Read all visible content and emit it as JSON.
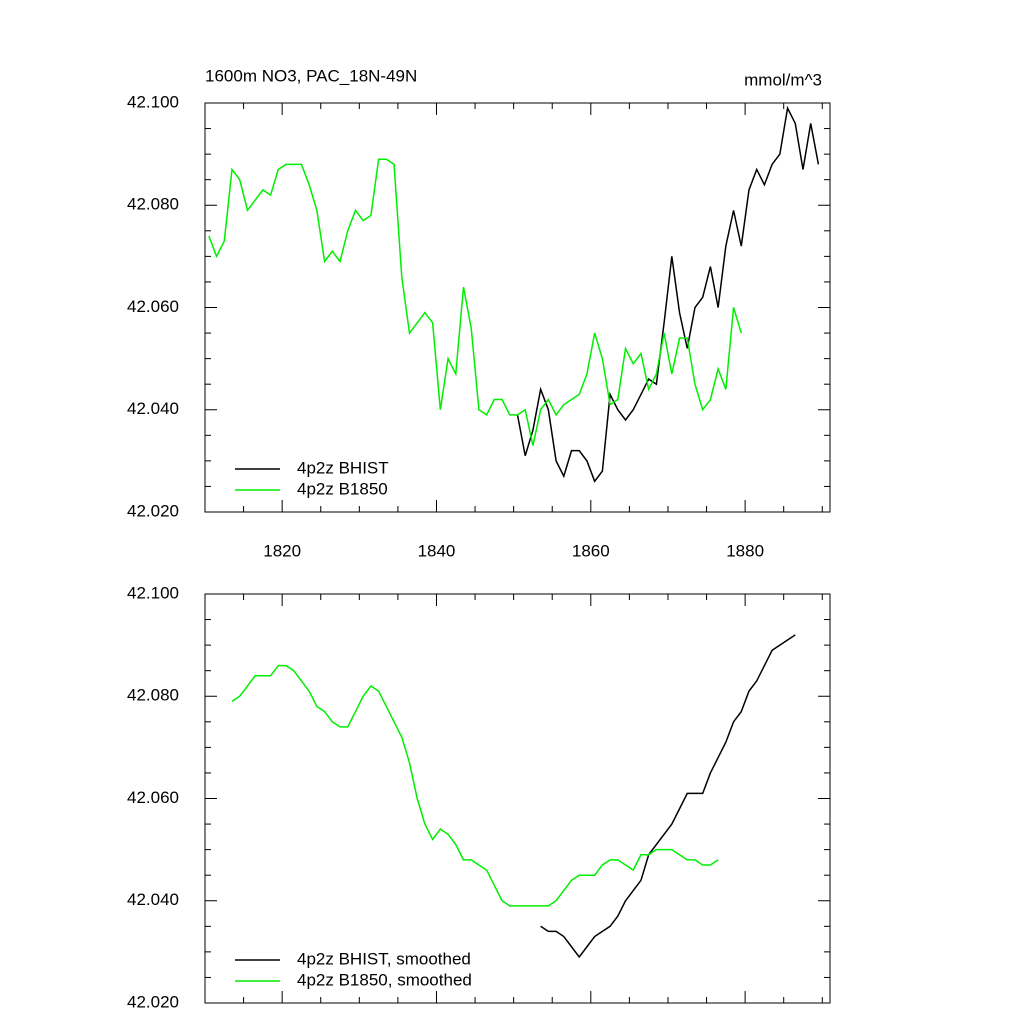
{
  "chart_data": [
    {
      "type": "line",
      "title": "1600m NO3, PAC_18N-49N",
      "units": "mmol/m^3",
      "xlim": [
        1810,
        1891
      ],
      "ylim": [
        42.02,
        42.1
      ],
      "xticks": [
        1820,
        1840,
        1860,
        1880
      ],
      "xminorticks": [
        1815,
        1825,
        1830,
        1835,
        1845,
        1850,
        1855,
        1865,
        1870,
        1875,
        1885,
        1890
      ],
      "yticks": [
        {
          "value": 42.02,
          "label": "42.020"
        },
        {
          "value": 42.04,
          "label": "42.040"
        },
        {
          "value": 42.06,
          "label": "42.060"
        },
        {
          "value": 42.08,
          "label": "42.080"
        },
        {
          "value": 42.1,
          "label": "42.100"
        }
      ],
      "yminorticks": [
        42.025,
        42.03,
        42.035,
        42.045,
        42.05,
        42.055,
        42.065,
        42.07,
        42.075,
        42.085,
        42.09,
        42.095
      ],
      "show_xtick_labels": true,
      "legend": "lower left",
      "series": [
        {
          "name": "4p2z BHIST",
          "color": "#000000",
          "x": [
            1850.5,
            1851.5,
            1852.5,
            1853.5,
            1854.5,
            1855.5,
            1856.5,
            1857.5,
            1858.5,
            1859.5,
            1860.5,
            1861.5,
            1862.5,
            1863.5,
            1864.5,
            1865.5,
            1866.5,
            1867.5,
            1868.5,
            1869.5,
            1870.5,
            1871.5,
            1872.5,
            1873.5,
            1874.5,
            1875.5,
            1876.5,
            1877.5,
            1878.5,
            1879.5,
            1880.5,
            1881.5,
            1882.5,
            1883.5,
            1884.5,
            1885.5,
            1886.5,
            1887.5,
            1888.5,
            1889.5
          ],
          "values": [
            42.039,
            42.031,
            42.036,
            42.044,
            42.04,
            42.03,
            42.027,
            42.032,
            42.032,
            42.03,
            42.026,
            42.028,
            42.043,
            42.04,
            42.038,
            42.04,
            42.043,
            42.046,
            42.045,
            42.057,
            42.07,
            42.059,
            42.052,
            42.06,
            42.062,
            42.068,
            42.06,
            42.072,
            42.079,
            42.072,
            42.083,
            42.087,
            42.084,
            42.088,
            42.09,
            42.099,
            42.096,
            42.087,
            42.096,
            42.088
          ]
        },
        {
          "name": "4p2z B1850",
          "color": "#00ee00",
          "x": [
            1810.5,
            1811.5,
            1812.5,
            1813.5,
            1814.5,
            1815.5,
            1816.5,
            1817.5,
            1818.5,
            1819.5,
            1820.5,
            1821.5,
            1822.5,
            1823.5,
            1824.5,
            1825.5,
            1826.5,
            1827.5,
            1828.5,
            1829.5,
            1830.5,
            1831.5,
            1832.5,
            1833.5,
            1834.5,
            1835.5,
            1836.5,
            1837.5,
            1838.5,
            1839.5,
            1840.5,
            1841.5,
            1842.5,
            1843.5,
            1844.5,
            1845.5,
            1846.5,
            1847.5,
            1848.5,
            1849.5,
            1850.5,
            1851.5,
            1852.5,
            1853.5,
            1854.5,
            1855.5,
            1856.5,
            1857.5,
            1858.5,
            1859.5,
            1860.5,
            1861.5,
            1862.5,
            1863.5,
            1864.5,
            1865.5,
            1866.5,
            1867.5,
            1868.5,
            1869.5,
            1870.5,
            1871.5,
            1872.5,
            1873.5,
            1874.5,
            1875.5,
            1876.5,
            1877.5,
            1878.5,
            1879.5
          ],
          "values": [
            42.074,
            42.07,
            42.073,
            42.087,
            42.085,
            42.079,
            42.081,
            42.083,
            42.082,
            42.087,
            42.088,
            42.088,
            42.088,
            42.084,
            42.079,
            42.069,
            42.071,
            42.069,
            42.075,
            42.079,
            42.077,
            42.078,
            42.089,
            42.089,
            42.088,
            42.066,
            42.055,
            42.057,
            42.059,
            42.057,
            42.04,
            42.05,
            42.047,
            42.064,
            42.056,
            42.04,
            42.039,
            42.042,
            42.042,
            42.039,
            42.039,
            42.04,
            42.033,
            42.04,
            42.042,
            42.039,
            42.041,
            42.042,
            42.043,
            42.047,
            42.055,
            42.05,
            42.041,
            42.042,
            42.052,
            42.049,
            42.051,
            42.044,
            42.047,
            42.055,
            42.047,
            42.054,
            42.054,
            42.045,
            42.04,
            42.042,
            42.048,
            42.044,
            42.06,
            42.055
          ]
        }
      ]
    },
    {
      "type": "line",
      "xlim": [
        1810,
        1891
      ],
      "ylim": [
        42.02,
        42.1
      ],
      "xticks": [
        1820,
        1840,
        1860,
        1880
      ],
      "xminorticks": [
        1815,
        1825,
        1830,
        1835,
        1845,
        1850,
        1855,
        1865,
        1870,
        1875,
        1885,
        1890
      ],
      "yticks": [
        {
          "value": 42.02,
          "label": "42.020"
        },
        {
          "value": 42.04,
          "label": "42.040"
        },
        {
          "value": 42.06,
          "label": "42.060"
        },
        {
          "value": 42.08,
          "label": "42.080"
        },
        {
          "value": 42.1,
          "label": "42.100"
        }
      ],
      "yminorticks": [
        42.025,
        42.03,
        42.035,
        42.045,
        42.05,
        42.055,
        42.065,
        42.07,
        42.075,
        42.085,
        42.09,
        42.095
      ],
      "show_xtick_labels": false,
      "legend": "lower left",
      "series": [
        {
          "name": "4p2z BHIST, smoothed",
          "color": "#000000",
          "x": [
            1853.5,
            1854.5,
            1855.5,
            1856.5,
            1857.5,
            1858.5,
            1859.5,
            1860.5,
            1861.5,
            1862.5,
            1863.5,
            1864.5,
            1865.5,
            1866.5,
            1867.5,
            1868.5,
            1869.5,
            1870.5,
            1871.5,
            1872.5,
            1873.5,
            1874.5,
            1875.5,
            1876.5,
            1877.5,
            1878.5,
            1879.5,
            1880.5,
            1881.5,
            1882.5,
            1883.5,
            1884.5,
            1885.5,
            1886.5
          ],
          "values": [
            42.035,
            42.034,
            42.034,
            42.033,
            42.031,
            42.029,
            42.031,
            42.033,
            42.034,
            42.035,
            42.037,
            42.04,
            42.042,
            42.044,
            42.049,
            42.051,
            42.053,
            42.055,
            42.058,
            42.061,
            42.061,
            42.061,
            42.065,
            42.068,
            42.071,
            42.075,
            42.077,
            42.081,
            42.083,
            42.086,
            42.089,
            42.09,
            42.091,
            42.092
          ]
        },
        {
          "name": "4p2z B1850, smoothed",
          "color": "#00ee00",
          "x": [
            1813.5,
            1814.5,
            1815.5,
            1816.5,
            1817.5,
            1818.5,
            1819.5,
            1820.5,
            1821.5,
            1822.5,
            1823.5,
            1824.5,
            1825.5,
            1826.5,
            1827.5,
            1828.5,
            1829.5,
            1830.5,
            1831.5,
            1832.5,
            1833.5,
            1834.5,
            1835.5,
            1836.5,
            1837.5,
            1838.5,
            1839.5,
            1840.5,
            1841.5,
            1842.5,
            1843.5,
            1844.5,
            1845.5,
            1846.5,
            1847.5,
            1848.5,
            1849.5,
            1850.5,
            1851.5,
            1852.5,
            1853.5,
            1854.5,
            1855.5,
            1856.5,
            1857.5,
            1858.5,
            1859.5,
            1860.5,
            1861.5,
            1862.5,
            1863.5,
            1864.5,
            1865.5,
            1866.5,
            1867.5,
            1868.5,
            1869.5,
            1870.5,
            1871.5,
            1872.5,
            1873.5,
            1874.5,
            1875.5,
            1876.5
          ],
          "values": [
            42.079,
            42.08,
            42.082,
            42.084,
            42.084,
            42.084,
            42.086,
            42.086,
            42.085,
            42.083,
            42.081,
            42.078,
            42.077,
            42.075,
            42.074,
            42.074,
            42.077,
            42.08,
            42.082,
            42.081,
            42.078,
            42.075,
            42.072,
            42.067,
            42.06,
            42.055,
            42.052,
            42.054,
            42.053,
            42.051,
            42.048,
            42.048,
            42.047,
            42.046,
            42.043,
            42.04,
            42.039,
            42.039,
            42.039,
            42.039,
            42.039,
            42.039,
            42.04,
            42.042,
            42.044,
            42.045,
            42.045,
            42.045,
            42.047,
            42.048,
            42.048,
            42.047,
            42.046,
            42.049,
            42.049,
            42.05,
            42.05,
            42.05,
            42.049,
            42.048,
            42.048,
            42.047,
            42.047,
            42.048
          ]
        }
      ]
    }
  ]
}
